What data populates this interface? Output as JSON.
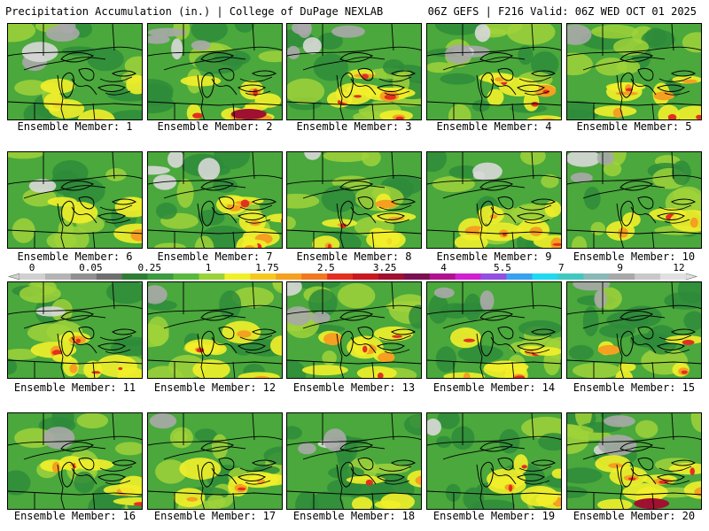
{
  "header": {
    "title_left": "Precipitation Accumulation (in.) | College of DuPage NEXLAB",
    "title_right": "06Z GEFS | F216 Valid: 06Z WED OCT 01 2025"
  },
  "colors": {
    "map_green_dark": "#2e8b3a",
    "map_green_mid": "#4aa83c",
    "map_green_light": "#9fd23a",
    "yellow": "#f2f02a",
    "orange": "#f5a020",
    "red": "#e23020",
    "dark_red": "#a01030",
    "magenta": "#c020c0",
    "gray_light": "#d8d8d8",
    "gray_mid": "#a8a8a8",
    "outline": "#000000"
  },
  "colorbar": {
    "labels": [
      "0",
      "0.05",
      "0.25",
      "1",
      "1.75",
      "2.5",
      "3.25",
      "4",
      "5.5",
      "7",
      "9",
      "12"
    ],
    "swatches": [
      "#d0d0d0",
      "#b4b4b4",
      "#909090",
      "#6f6f6f",
      "#2f7d35",
      "#3c9a3f",
      "#58b83e",
      "#9bd23a",
      "#f0f028",
      "#f5c820",
      "#f5a020",
      "#f07820",
      "#e23020",
      "#c81820",
      "#a01030",
      "#7a1050",
      "#b01090",
      "#d020d0",
      "#9050e0",
      "#3aa0f0",
      "#20d8f0",
      "#40c8c0",
      "#8ab8b8",
      "#a8a8a8",
      "#c8c8c8",
      "#e0e0e0"
    ]
  },
  "members": [
    {
      "label": "Ensemble Member: 1",
      "intensity": 0.45,
      "gray": 0.35
    },
    {
      "label": "Ensemble Member: 2",
      "intensity": 0.65,
      "gray": 0.35
    },
    {
      "label": "Ensemble Member: 3",
      "intensity": 0.55,
      "gray": 0.45
    },
    {
      "label": "Ensemble Member: 4",
      "intensity": 0.6,
      "gray": 0.4
    },
    {
      "label": "Ensemble Member: 5",
      "intensity": 0.55,
      "gray": 0.05
    },
    {
      "label": "Ensemble Member: 6",
      "intensity": 0.3,
      "gray": 0.1
    },
    {
      "label": "Ensemble Member: 7",
      "intensity": 0.6,
      "gray": 0.4
    },
    {
      "label": "Ensemble Member: 8",
      "intensity": 0.55,
      "gray": 0.05
    },
    {
      "label": "Ensemble Member: 9",
      "intensity": 0.55,
      "gray": 0.15
    },
    {
      "label": "Ensemble Member: 10",
      "intensity": 0.35,
      "gray": 0.25
    },
    {
      "label": "Ensemble Member: 11",
      "intensity": 0.6,
      "gray": 0.05
    },
    {
      "label": "Ensemble Member: 12",
      "intensity": 0.6,
      "gray": 0.05
    },
    {
      "label": "Ensemble Member: 13",
      "intensity": 0.6,
      "gray": 0.3
    },
    {
      "label": "Ensemble Member: 14",
      "intensity": 0.55,
      "gray": 0.2
    },
    {
      "label": "Ensemble Member: 15",
      "intensity": 0.4,
      "gray": 0.2
    },
    {
      "label": "Ensemble Member: 16",
      "intensity": 0.5,
      "gray": 0.1
    },
    {
      "label": "Ensemble Member: 17",
      "intensity": 0.45,
      "gray": 0.05
    },
    {
      "label": "Ensemble Member: 18",
      "intensity": 0.4,
      "gray": 0.3
    },
    {
      "label": "Ensemble Member: 19",
      "intensity": 0.5,
      "gray": 0.05
    },
    {
      "label": "Ensemble Member: 20",
      "intensity": 0.7,
      "gray": 0.3
    }
  ]
}
